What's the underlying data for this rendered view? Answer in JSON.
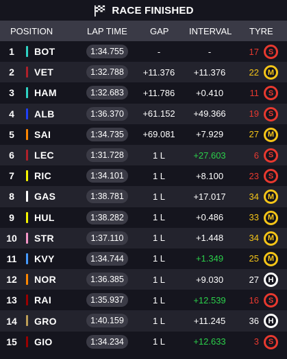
{
  "header": {
    "title": "RACE FINISHED"
  },
  "columns": {
    "position": "POSITION",
    "lap_time": "LAP TIME",
    "gap": "GAP",
    "interval": "INTERVAL",
    "tyre": "TYRE"
  },
  "colors": {
    "soft": "#e8392f",
    "medium": "#f5c518",
    "hard": "#ffffff",
    "fastest_interval": "#2bd04a"
  },
  "rows": [
    {
      "pos": "1",
      "driver": "BOT",
      "team_color": "#2fd3c4",
      "lap": "1:34.755",
      "gap": "-",
      "interval": "-",
      "fast": false,
      "laps": "17",
      "tyre": "S",
      "compound": "soft"
    },
    {
      "pos": "2",
      "driver": "VET",
      "team_color": "#b0202a",
      "lap": "1:32.788",
      "gap": "+11.376",
      "interval": "+11.376",
      "fast": false,
      "laps": "22",
      "tyre": "M",
      "compound": "medium"
    },
    {
      "pos": "3",
      "driver": "HAM",
      "team_color": "#2fd3c4",
      "lap": "1:32.683",
      "gap": "+11.786",
      "interval": "+0.410",
      "fast": false,
      "laps": "11",
      "tyre": "S",
      "compound": "soft"
    },
    {
      "pos": "4",
      "driver": "ALB",
      "team_color": "#1e41ff",
      "lap": "1:36.370",
      "gap": "+61.152",
      "interval": "+49.366",
      "fast": false,
      "laps": "19",
      "tyre": "S",
      "compound": "soft"
    },
    {
      "pos": "5",
      "driver": "SAI",
      "team_color": "#ff8700",
      "lap": "1:34.735",
      "gap": "+69.081",
      "interval": "+7.929",
      "fast": false,
      "laps": "27",
      "tyre": "M",
      "compound": "medium"
    },
    {
      "pos": "6",
      "driver": "LEC",
      "team_color": "#b0202a",
      "lap": "1:31.728",
      "gap": "1 L",
      "interval": "+27.603",
      "fast": true,
      "laps": "6",
      "tyre": "S",
      "compound": "soft"
    },
    {
      "pos": "7",
      "driver": "RIC",
      "team_color": "#f5f500",
      "lap": "1:34.101",
      "gap": "1 L",
      "interval": "+8.100",
      "fast": false,
      "laps": "23",
      "tyre": "S",
      "compound": "soft"
    },
    {
      "pos": "8",
      "driver": "GAS",
      "team_color": "#ffffff",
      "lap": "1:38.781",
      "gap": "1 L",
      "interval": "+17.017",
      "fast": false,
      "laps": "34",
      "tyre": "M",
      "compound": "medium"
    },
    {
      "pos": "9",
      "driver": "HUL",
      "team_color": "#f5f500",
      "lap": "1:38.282",
      "gap": "1 L",
      "interval": "+0.486",
      "fast": false,
      "laps": "33",
      "tyre": "M",
      "compound": "medium"
    },
    {
      "pos": "10",
      "driver": "STR",
      "team_color": "#f596c8",
      "lap": "1:37.110",
      "gap": "1 L",
      "interval": "+1.448",
      "fast": false,
      "laps": "34",
      "tyre": "M",
      "compound": "medium"
    },
    {
      "pos": "11",
      "driver": "KVY",
      "team_color": "#469bff",
      "lap": "1:34.744",
      "gap": "1 L",
      "interval": "+1.349",
      "fast": true,
      "laps": "25",
      "tyre": "M",
      "compound": "medium"
    },
    {
      "pos": "12",
      "driver": "NOR",
      "team_color": "#ff8700",
      "lap": "1:36.385",
      "gap": "1 L",
      "interval": "+9.030",
      "fast": false,
      "laps": "27",
      "tyre": "H",
      "compound": "hard"
    },
    {
      "pos": "13",
      "driver": "RAI",
      "team_color": "#9b0000",
      "lap": "1:35.937",
      "gap": "1 L",
      "interval": "+12.539",
      "fast": true,
      "laps": "16",
      "tyre": "S",
      "compound": "soft"
    },
    {
      "pos": "14",
      "driver": "GRO",
      "team_color": "#bd9e57",
      "lap": "1:40.159",
      "gap": "1 L",
      "interval": "+11.245",
      "fast": false,
      "laps": "36",
      "tyre": "H",
      "compound": "hard"
    },
    {
      "pos": "15",
      "driver": "GIO",
      "team_color": "#9b0000",
      "lap": "1:34.234",
      "gap": "1 L",
      "interval": "+12.633",
      "fast": true,
      "laps": "3",
      "tyre": "S",
      "compound": "soft"
    }
  ]
}
